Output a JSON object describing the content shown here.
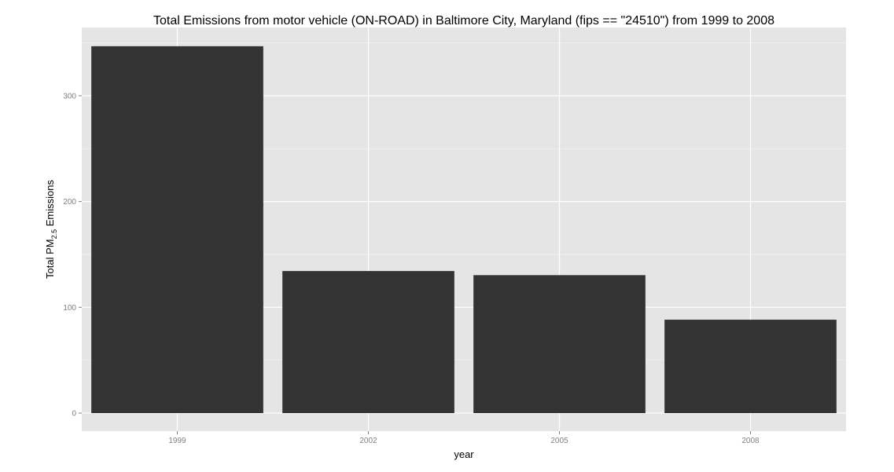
{
  "chart_data": {
    "type": "bar",
    "title": "Total Emissions from motor vehicle (ON-ROAD) in Baltimore City, Maryland (fips == \"24510\") from 1999 to 2008",
    "xlabel": "year",
    "ylabel": {
      "prefix": "Total PM",
      "subscript": "2.5",
      "suffix": " Emissions"
    },
    "categories": [
      "1999",
      "2002",
      "2005",
      "2008"
    ],
    "values": [
      346.8,
      134.3,
      130.4,
      88.3
    ],
    "ylim": [
      0,
      365
    ],
    "yticks": [
      0,
      100,
      200,
      300
    ],
    "grid": true,
    "legend": "none",
    "colors": {
      "bar": "#333333",
      "panel": "#e5e5e5",
      "grid_major": "#ffffff",
      "grid_minor": "#f2f2f2"
    }
  }
}
